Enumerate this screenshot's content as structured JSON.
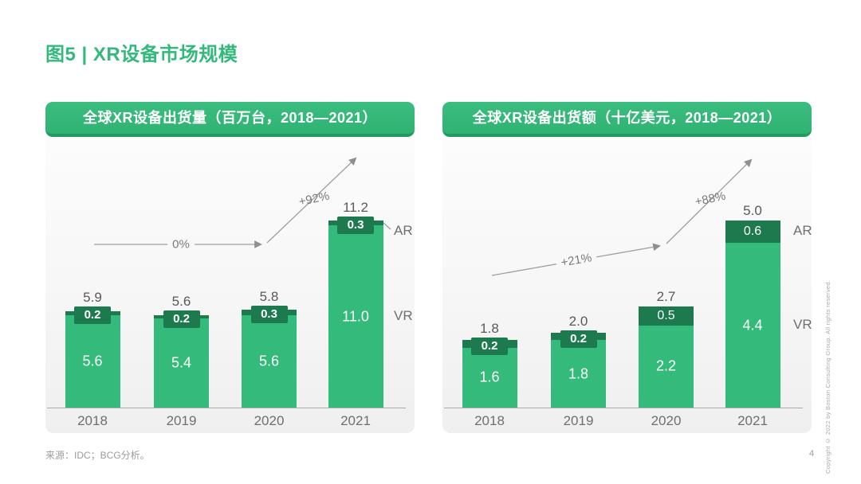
{
  "page": {
    "title": "图5 | XR设备市场规模"
  },
  "colors": {
    "accent_green": "#34ba7a",
    "dark_green": "#1d7a4e",
    "banner_edge": "#249a60",
    "title_green": "#33b97b",
    "arrow_gray": "#9e9e9e",
    "total_text": "#595959",
    "axis_text": "#6f6f6f"
  },
  "chart_data": [
    {
      "type": "bar",
      "stacked": true,
      "title": "全球XR设备出货量（百万台，2018—2021）",
      "unit": "百万台",
      "categories": [
        "2018",
        "2019",
        "2020",
        "2021"
      ],
      "series": [
        {
          "name": "AR",
          "values": [
            0.2,
            0.2,
            0.3,
            0.3
          ]
        },
        {
          "name": "VR",
          "values": [
            5.6,
            5.4,
            5.6,
            11.0
          ]
        }
      ],
      "totals": [
        "5.9",
        "5.6",
        "5.8",
        "11.2"
      ],
      "growth_labels": [
        "0%",
        "+92%"
      ],
      "ylim": [
        0,
        11.3
      ],
      "legend_position": "right",
      "grid": false
    },
    {
      "type": "bar",
      "stacked": true,
      "title": "全球XR设备出货额（十亿美元，2018—2021）",
      "unit": "十亿美元",
      "categories": [
        "2018",
        "2019",
        "2020",
        "2021"
      ],
      "series": [
        {
          "name": "AR",
          "values": [
            0.2,
            0.2,
            0.5,
            0.6
          ]
        },
        {
          "name": "VR",
          "values": [
            1.6,
            1.8,
            2.2,
            4.4
          ]
        }
      ],
      "totals": [
        "1.8",
        "2.0",
        "2.7",
        "5.0"
      ],
      "growth_labels": [
        "+21%",
        "+88%"
      ],
      "ylim": [
        0,
        5.0
      ],
      "legend_position": "right",
      "grid": false
    }
  ],
  "footer": {
    "source": "来源：IDC；BCG分析。",
    "page_number": "4",
    "copyright": "Copyright © 2022 by Boston Consulting Group. All rights reserved."
  }
}
